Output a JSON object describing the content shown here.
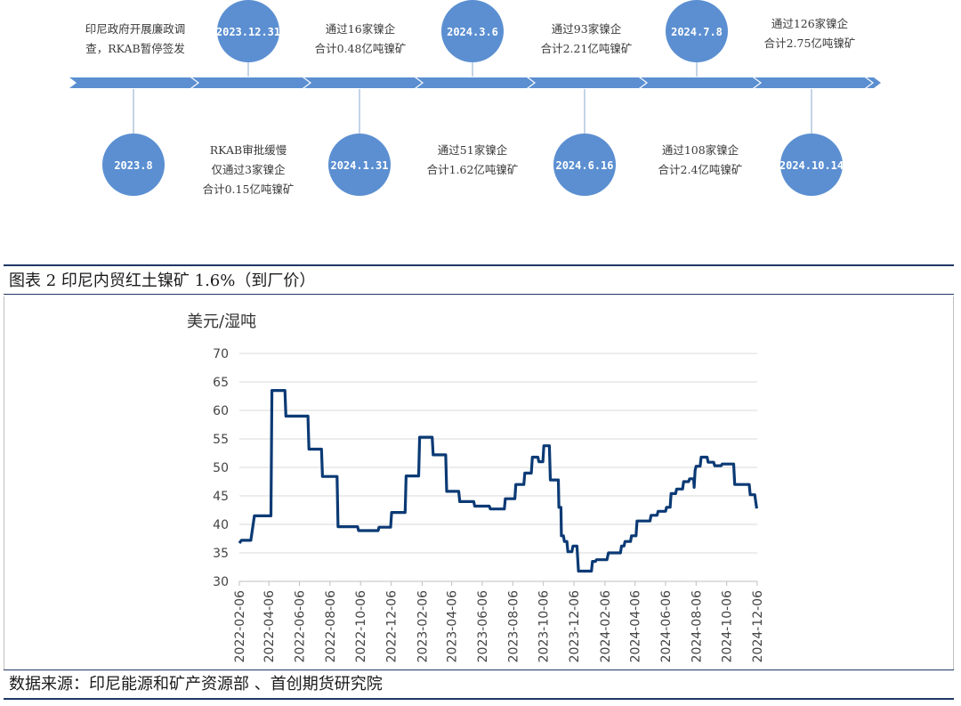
{
  "timeline": {
    "top_events": [
      {
        "line1": "印尼政府开展廉政调",
        "line2": "查，RKAB暂停签发"
      },
      {
        "line1": "通过16家镍企",
        "line2": "合计0.48亿吨镍矿"
      },
      {
        "line1": "通过93家镍企",
        "line2": "合计2.21亿吨镍矿"
      },
      {
        "line1": "通过126家镍企",
        "line2": "合计2.75亿吨镍矿"
      }
    ],
    "bottom_events": [
      {
        "line1": "RKAB审批缓慢",
        "line2": "仅通过3家镍企",
        "line3": "合计0.15亿吨镍矿"
      },
      {
        "line1": "通过51家镍企",
        "line2": "合计1.62亿吨镍矿"
      },
      {
        "line1": "通过108家镍企",
        "line2": "合计2.4亿吨镍矿"
      }
    ],
    "top_dates": [
      "2023.12.31",
      "2024.3.6",
      "2024.7.8"
    ],
    "bottom_dates": [
      "2023.8",
      "2024.1.31",
      "2024.6.16",
      "2024.10.14"
    ],
    "circle_color": "#5b8fd1",
    "arrow_color": "#5b8fd1"
  },
  "figure": {
    "title": "图表 2 印尼内贸红土镍矿 1.6%（到厂价）",
    "source": "数据来源：印尼能源和矿产资源部 、首创期货研究院"
  },
  "chart_data": {
    "type": "line",
    "ylabel": "美元/湿吨",
    "ylim": [
      30,
      70
    ],
    "yticks": [
      "70",
      "65",
      "60",
      "55",
      "50",
      "45",
      "40",
      "35",
      "30"
    ],
    "grid": true,
    "line_color": "#0b3a75",
    "x_tick_labels": [
      "2022-02-06",
      "2022-04-06",
      "2022-06-06",
      "2022-08-06",
      "2022-10-06",
      "2022-12-06",
      "2023-02-06",
      "2023-04-06",
      "2023-06-06",
      "2023-08-06",
      "2023-10-06",
      "2023-12-06",
      "2024-02-06",
      "2024-04-06",
      "2024-06-06",
      "2024-08-06",
      "2024-10-06",
      "2024-12-06"
    ],
    "series": [
      {
        "x": [
          "2022-02-06",
          "2022-02-10",
          "2022-03-01",
          "2022-03-08",
          "2022-04-10",
          "2022-04-12",
          "2022-05-08",
          "2022-05-10",
          "2022-06-01",
          "2022-06-03",
          "2022-06-23",
          "2022-06-25",
          "2022-07-20",
          "2022-07-22",
          "2022-08-20",
          "2022-08-22",
          "2022-09-30",
          "2022-10-02",
          "2022-11-10",
          "2022-11-12",
          "2022-12-05",
          "2022-12-07",
          "2023-01-03",
          "2023-01-05",
          "2023-01-30",
          "2023-02-01",
          "2023-02-26",
          "2023-02-28",
          "2023-03-25",
          "2023-03-27",
          "2023-04-20",
          "2023-04-22",
          "2023-05-20",
          "2023-05-22",
          "2023-06-20",
          "2023-06-22",
          "2023-07-20",
          "2023-07-22",
          "2023-08-10",
          "2023-08-12",
          "2023-08-28",
          "2023-08-30",
          "2023-09-12",
          "2023-09-14",
          "2023-09-25",
          "2023-09-27",
          "2023-10-05",
          "2023-10-07",
          "2023-10-18",
          "2023-10-20",
          "2023-11-05",
          "2023-11-06",
          "2023-11-10",
          "2023-11-11",
          "2023-11-15",
          "2023-11-17",
          "2023-11-22",
          "2023-11-24",
          "2023-12-02",
          "2023-12-04",
          "2023-12-12",
          "2023-12-15",
          "2024-01-10",
          "2024-01-12",
          "2024-01-18",
          "2024-01-20",
          "2024-02-10",
          "2024-02-13",
          "2024-03-08",
          "2024-03-10",
          "2024-03-15",
          "2024-03-17",
          "2024-03-28",
          "2024-03-30",
          "2024-04-08",
          "2024-04-10",
          "2024-05-06",
          "2024-05-08",
          "2024-05-20",
          "2024-05-22",
          "2024-06-06",
          "2024-06-08",
          "2024-06-15",
          "2024-06-17",
          "2024-06-26",
          "2024-06-28",
          "2024-07-10",
          "2024-07-12",
          "2024-07-22",
          "2024-07-24",
          "2024-08-01",
          "2024-08-02",
          "2024-08-04",
          "2024-08-06",
          "2024-08-14",
          "2024-08-16",
          "2024-08-28",
          "2024-08-30",
          "2024-09-10",
          "2024-09-12",
          "2024-09-25",
          "2024-09-27",
          "2024-10-20",
          "2024-10-22",
          "2024-11-20",
          "2024-11-22",
          "2024-12-01",
          "2024-12-05"
        ],
        "y": [
          36.7,
          37.2,
          37.2,
          41.5,
          41.5,
          63.5,
          63.5,
          59.0,
          59.0,
          59.0,
          59.0,
          53.2,
          53.2,
          48.4,
          48.4,
          39.6,
          39.6,
          38.9,
          38.9,
          39.5,
          39.5,
          42.1,
          42.1,
          48.5,
          48.5,
          55.3,
          55.3,
          52.2,
          52.2,
          45.8,
          45.8,
          44.0,
          44.0,
          43.2,
          43.2,
          42.7,
          42.7,
          44.5,
          44.5,
          47.0,
          47.0,
          49.0,
          49.0,
          51.8,
          51.8,
          51.0,
          51.0,
          53.8,
          53.8,
          47.8,
          47.8,
          43.0,
          43.0,
          38.0,
          38.0,
          37.0,
          37.0,
          35.2,
          35.2,
          36.2,
          36.2,
          31.8,
          31.8,
          33.5,
          33.5,
          33.8,
          33.8,
          35.0,
          35.0,
          36.2,
          36.2,
          37.0,
          37.0,
          38.0,
          38.0,
          40.6,
          40.6,
          41.6,
          41.6,
          42.3,
          42.3,
          43.0,
          43.0,
          45.4,
          45.4,
          46.2,
          46.2,
          47.5,
          47.5,
          48.0,
          48.0,
          46.5,
          49.5,
          50.2,
          50.2,
          51.8,
          51.8,
          50.9,
          50.9,
          50.3,
          50.3,
          50.6,
          50.6,
          47.0,
          47.0,
          45.2,
          45.2,
          42.8
        ]
      }
    ]
  }
}
